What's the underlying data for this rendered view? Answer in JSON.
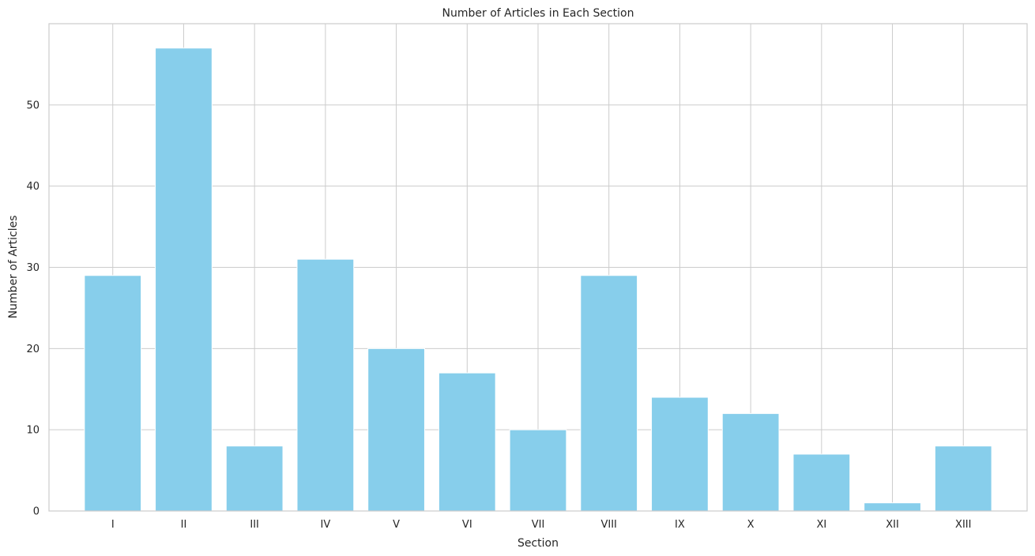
{
  "chart_data": {
    "type": "bar",
    "title": "Number of Articles in Each Section",
    "xlabel": "Section",
    "ylabel": "Number of Articles",
    "categories": [
      "I",
      "II",
      "III",
      "IV",
      "V",
      "VI",
      "VII",
      "VIII",
      "IX",
      "X",
      "XI",
      "XII",
      "XIII"
    ],
    "values": [
      29,
      57,
      8,
      31,
      20,
      17,
      10,
      29,
      14,
      12,
      7,
      1,
      8
    ],
    "ylim": [
      0,
      60
    ],
    "yticks": [
      0,
      10,
      20,
      30,
      40,
      50
    ],
    "grid": true,
    "bar_color": "#87CEEB",
    "grid_color": "#cccccc"
  }
}
